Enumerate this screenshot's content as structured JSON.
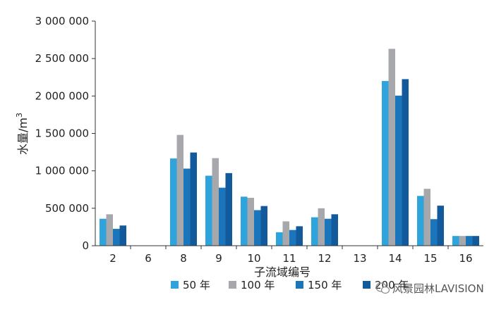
{
  "chart_data": {
    "type": "bar",
    "title": "",
    "xlabel": "子流域编号",
    "ylabel": "水量/m3",
    "ylabel_main": "水量/m",
    "ylabel_sup": "3",
    "categories": [
      "2",
      "6",
      "8",
      "9",
      "10",
      "11",
      "12",
      "13",
      "14",
      "15",
      "16"
    ],
    "ylim": [
      0,
      3000000
    ],
    "yticks": [
      0,
      500000,
      1000000,
      1500000,
      2000000,
      2500000,
      3000000
    ],
    "ytick_labels": [
      "0",
      "500 000",
      "1 000 000",
      "1 500 000",
      "2 000 000",
      "2 500 000",
      "3 000 000"
    ],
    "series": [
      {
        "name": "50 年",
        "color": "#2ea3dc",
        "values": [
          360000,
          0,
          1165000,
          935000,
          655000,
          180000,
          380000,
          0,
          2200000,
          665000,
          130000
        ]
      },
      {
        "name": "100 年",
        "color": "#a6a8ab",
        "values": [
          420000,
          0,
          1480000,
          1170000,
          640000,
          325000,
          500000,
          0,
          2630000,
          760000,
          130000
        ]
      },
      {
        "name": "150 年",
        "color": "#1b75bb",
        "values": [
          225000,
          0,
          1030000,
          775000,
          475000,
          210000,
          360000,
          0,
          2005000,
          355000,
          130000
        ]
      },
      {
        "name": "200 年",
        "color": "#135a9c",
        "values": [
          270000,
          0,
          1245000,
          970000,
          530000,
          260000,
          420000,
          0,
          2225000,
          535000,
          130000
        ]
      }
    ],
    "legend_position": "bottom",
    "grid": false
  },
  "watermark": {
    "icon": "wechat-icon",
    "text": "风景园林LAVISION"
  }
}
